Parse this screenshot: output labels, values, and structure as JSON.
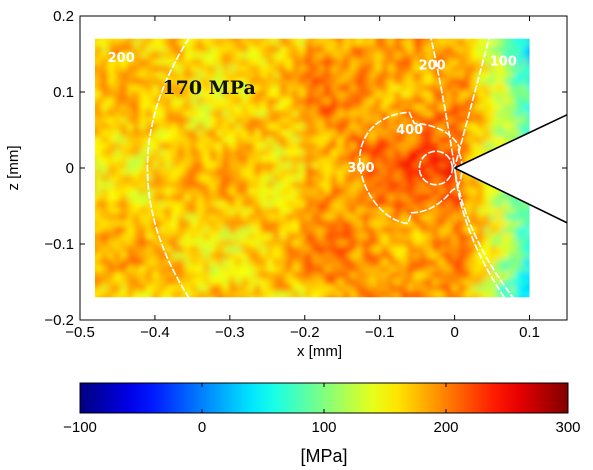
{
  "chart_data": {
    "type": "heatmap",
    "title": "",
    "xlabel": "x [mm]",
    "ylabel": "z [mm]",
    "xlim": [
      -0.5,
      0.15
    ],
    "ylim": [
      -0.2,
      0.2
    ],
    "data_extent": {
      "x": [
        -0.48,
        0.1
      ],
      "z": [
        -0.17,
        0.17
      ]
    },
    "xticks": [
      -0.5,
      -0.4,
      -0.3,
      -0.2,
      -0.1,
      0,
      0.1
    ],
    "xtick_labels": [
      "−0.5",
      "−0.4",
      "−0.3",
      "−0.2",
      "−0.1",
      "0",
      "0.1"
    ],
    "yticks": [
      -0.2,
      -0.1,
      0,
      0.1,
      0.2
    ],
    "ytick_labels": [
      "−0.2",
      "−0.1",
      "0",
      "0.1",
      "0.2"
    ],
    "grid": false,
    "annotation": "170 MPa",
    "contours": [
      {
        "level": 100,
        "label": "100",
        "label_at": [
          0.065,
          0.14
        ]
      },
      {
        "level": 200,
        "label": "200",
        "label_at": [
          -0.445,
          0.145
        ]
      },
      {
        "level": 200,
        "label": "200",
        "label_at": [
          -0.03,
          0.135
        ]
      },
      {
        "level": 300,
        "label": "300",
        "label_at": [
          -0.125,
          0.0
        ]
      },
      {
        "level": 400,
        "label": "400",
        "label_at": [
          -0.06,
          0.05
        ]
      }
    ],
    "crack_tip": [
      0,
      0
    ],
    "notch_edges": [
      {
        "from": [
          0,
          0
        ],
        "to": [
          0.15,
          0.07
        ]
      },
      {
        "from": [
          0,
          0
        ],
        "to": [
          0.15,
          -0.072
        ]
      }
    ],
    "colorbar": {
      "min": -100,
      "max": 300,
      "ticks": [
        -100,
        0,
        100,
        200,
        300
      ],
      "tick_labels": [
        "−100",
        "0",
        "100",
        "200",
        "300"
      ],
      "label": "[MPa]",
      "colormap": "jet"
    }
  }
}
